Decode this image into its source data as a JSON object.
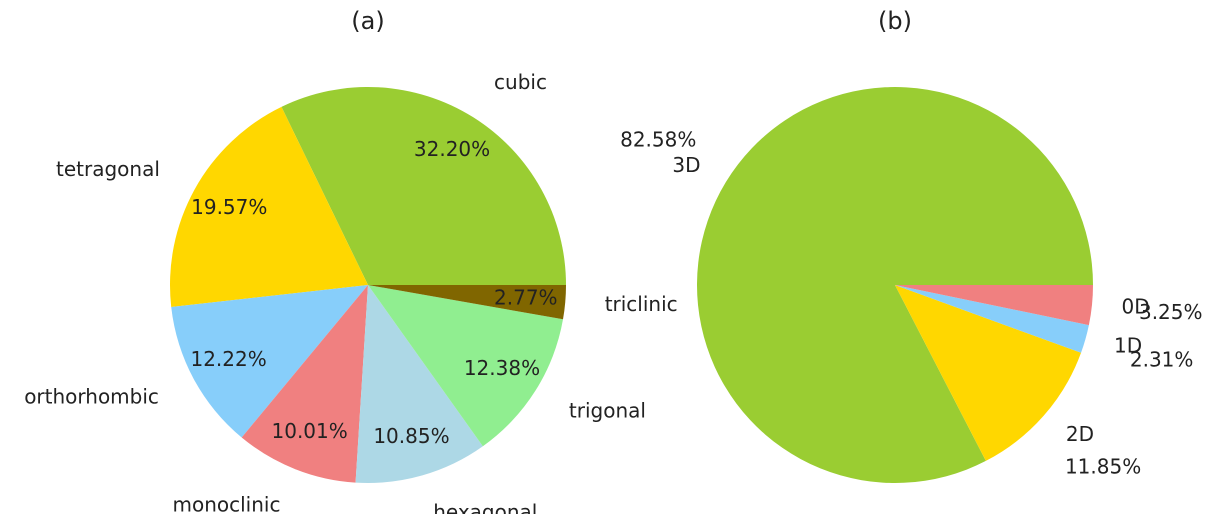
{
  "chart_data": [
    {
      "type": "pie",
      "title": "(a)",
      "categories": [
        "cubic",
        "tetragonal",
        "orthorhombic",
        "monoclinic",
        "hexagonal",
        "trigonal",
        "triclinic"
      ],
      "values": [
        32.2,
        19.57,
        12.22,
        10.01,
        10.85,
        12.38,
        2.77
      ],
      "value_labels": [
        "32.20%",
        "19.57%",
        "12.22%",
        "10.01%",
        "10.85%",
        "12.38%",
        "2.77%"
      ],
      "colors": [
        "#9acd32",
        "#ffd700",
        "#87cefa",
        "#f08080",
        "#add8e6",
        "#90ee90",
        "#806600"
      ]
    },
    {
      "type": "pie",
      "title": "(b)",
      "categories": [
        "3D",
        "2D",
        "1D",
        "0D"
      ],
      "values": [
        82.58,
        11.85,
        2.31,
        3.25
      ],
      "value_labels": [
        "82.58%",
        "11.85%",
        "2.31%",
        "3.25%"
      ],
      "colors": [
        "#9acd32",
        "#ffd700",
        "#87cefa",
        "#f08080"
      ]
    }
  ]
}
